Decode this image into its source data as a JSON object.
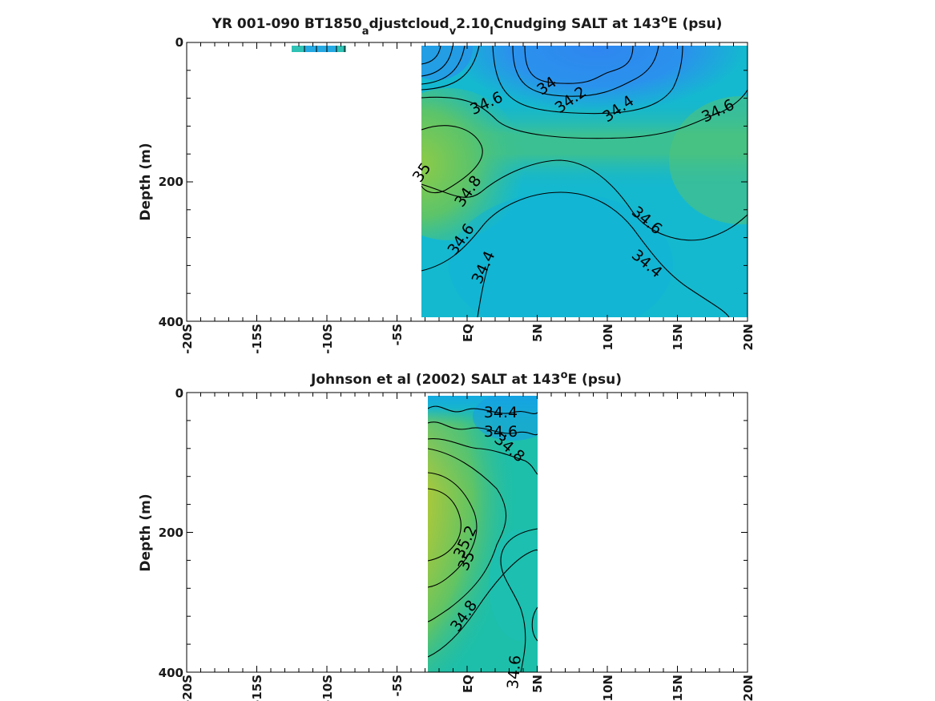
{
  "chart_data": [
    {
      "type": "heatmap",
      "title": "YR 001-090 BT1850_adjustcloud_v2.10_ICnudging SALT at 143°E (psu)",
      "title_parts": {
        "pre": "YR 001-090 BT1850",
        "sub1": "a",
        "mid1": "djustcloud",
        "sub2": "v",
        "mid2": "2.10",
        "sub3": "I",
        "mid3": "Cnudging SALT at 143",
        "sup": "o",
        "post": "E (psu)"
      },
      "ylabel": "Depth (m)",
      "xlim": [
        -20,
        20
      ],
      "ylim": [
        0,
        400
      ],
      "y_inverted": true,
      "x_ticks": [
        "-20S",
        "-15S",
        "-10S",
        "-5S",
        "EQ",
        "5N",
        "10N",
        "15N",
        "20N"
      ],
      "y_ticks": [
        "0",
        "200",
        "400"
      ],
      "colormap": [
        "#2c7bf0",
        "#16b4d6",
        "#1cbfb0",
        "#5ec66c",
        "#a8c83a",
        "#eeb83a",
        "#f7c43a"
      ],
      "data_extent": {
        "lat": [
          -3.5,
          20
        ],
        "depth": [
          5,
          395
        ]
      },
      "contour_levels": [
        "34",
        "34.2",
        "34.4",
        "34.6",
        "34.8",
        "35"
      ],
      "contour_labels": [
        {
          "text": "34",
          "lat": 5.7,
          "depth": 63
        },
        {
          "text": "34.2",
          "lat": 7.4,
          "depth": 83
        },
        {
          "text": "34.4",
          "lat": 10.8,
          "depth": 96
        },
        {
          "text": "34.6",
          "lat": 1.4,
          "depth": 88
        },
        {
          "text": "34.6",
          "lat": 17.9,
          "depth": 99
        },
        {
          "text": "35",
          "lat": -3.2,
          "depth": 187
        },
        {
          "text": "34.8",
          "lat": 0.1,
          "depth": 214
        },
        {
          "text": "34.6",
          "lat": 12.8,
          "depth": 256
        },
        {
          "text": "34.6",
          "lat": -0.4,
          "depth": 283
        },
        {
          "text": "34.4",
          "lat": 1.2,
          "depth": 323
        },
        {
          "text": "34.4",
          "lat": 12.8,
          "depth": 318
        }
      ]
    },
    {
      "type": "heatmap",
      "title": "Johnson et al (2002) SALT at 143°E (psu)",
      "title_parts": {
        "pre": "Johnson et al (2002) SALT at 143",
        "sup": "o",
        "post": "E (psu)"
      },
      "ylabel": "Depth (m)",
      "xlim": [
        -20,
        20
      ],
      "ylim": [
        0,
        400
      ],
      "y_inverted": true,
      "x_ticks": [
        "-20S",
        "-15S",
        "-10S",
        "-5S",
        "EQ",
        "5N",
        "10N",
        "15N",
        "20N"
      ],
      "y_ticks": [
        "0",
        "200",
        "400"
      ],
      "colormap": [
        "#2c7bf0",
        "#16b4d6",
        "#1cbfb0",
        "#5ec66c",
        "#a8c83a",
        "#eeb83a",
        "#f7c43a"
      ],
      "data_extent": {
        "lat": [
          -2.8,
          5
        ],
        "depth": [
          5,
          400
        ]
      },
      "contour_levels": [
        "34.4",
        "34.6",
        "34.8",
        "35",
        "35.2"
      ],
      "contour_labels": [
        {
          "text": "34.4",
          "lat": 2.4,
          "depth": 29
        },
        {
          "text": "34.6",
          "lat": 2.4,
          "depth": 57
        },
        {
          "text": "34.8",
          "lat": 3.0,
          "depth": 80
        },
        {
          "text": "35.2",
          "lat": -0.1,
          "depth": 214
        },
        {
          "text": "35",
          "lat": 0.0,
          "depth": 241
        },
        {
          "text": "34.8",
          "lat": -0.2,
          "depth": 320
        },
        {
          "text": "34.6",
          "lat": 3.4,
          "depth": 400
        }
      ]
    }
  ]
}
